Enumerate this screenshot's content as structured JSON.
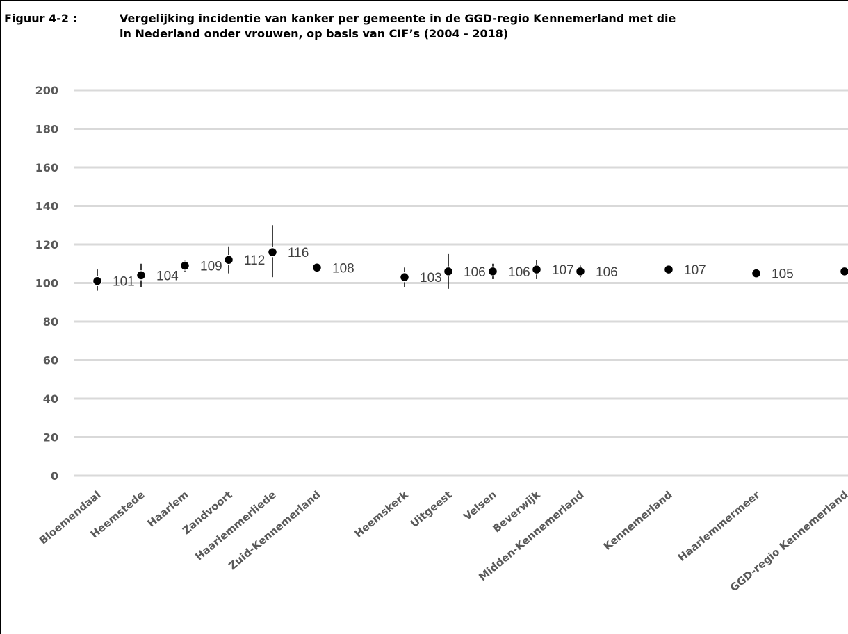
{
  "figure": {
    "prefix": "Figuur 4-2 :",
    "title_line1": "Vergelijking incidentie van kanker per gemeente in de GGD-regio Kennemerland met die",
    "title_line2": "in Nederland onder vrouwen, op basis van CIF’s (2004 - 2018)"
  },
  "chart_data": {
    "type": "scatter",
    "title": "Vergelijking incidentie van kanker per gemeente in de GGD-regio Kennemerland met die in Nederland onder vrouwen, op basis van CIF’s (2004 - 2018)",
    "xlabel": "",
    "ylabel": "",
    "ylim": [
      0,
      200
    ],
    "yticks": [
      0,
      20,
      40,
      60,
      80,
      100,
      120,
      140,
      160,
      180,
      200
    ],
    "grid": true,
    "marker_color": "#000000",
    "grid_color": "#d9d9d9",
    "points": [
      {
        "label": "Bloemendaal",
        "value": 101,
        "low": 96,
        "high": 107
      },
      {
        "label": "Heemstede",
        "value": 104,
        "low": 98,
        "high": 110
      },
      {
        "label": "Haarlem",
        "value": 109,
        "low": 106,
        "high": 112
      },
      {
        "label": "Zandvoort",
        "value": 112,
        "low": 105,
        "high": 119
      },
      {
        "label": "Haarlemmerliede",
        "value": 116,
        "low": 103,
        "high": 130
      },
      {
        "label": "Zuid-Kennemerland",
        "value": 108,
        "low": 106,
        "high": 110
      },
      {
        "label": "Heemskerk",
        "value": 103,
        "low": 98,
        "high": 108
      },
      {
        "label": "Uitgeest",
        "value": 106,
        "low": 97,
        "high": 115
      },
      {
        "label": "Velsen",
        "value": 106,
        "low": 102,
        "high": 110
      },
      {
        "label": "Beverwijk",
        "value": 107,
        "low": 102,
        "high": 112
      },
      {
        "label": "Midden-Kennemerland",
        "value": 106,
        "low": 103,
        "high": 109
      },
      {
        "label": "Kennemerland",
        "value": 107,
        "low": 105,
        "high": 109
      },
      {
        "label": "Haarlemmermeer",
        "value": 105,
        "low": 103,
        "high": 107
      },
      {
        "label": "GGD-regio Kennemerland",
        "value": 106,
        "low": 105,
        "high": 107
      }
    ]
  }
}
